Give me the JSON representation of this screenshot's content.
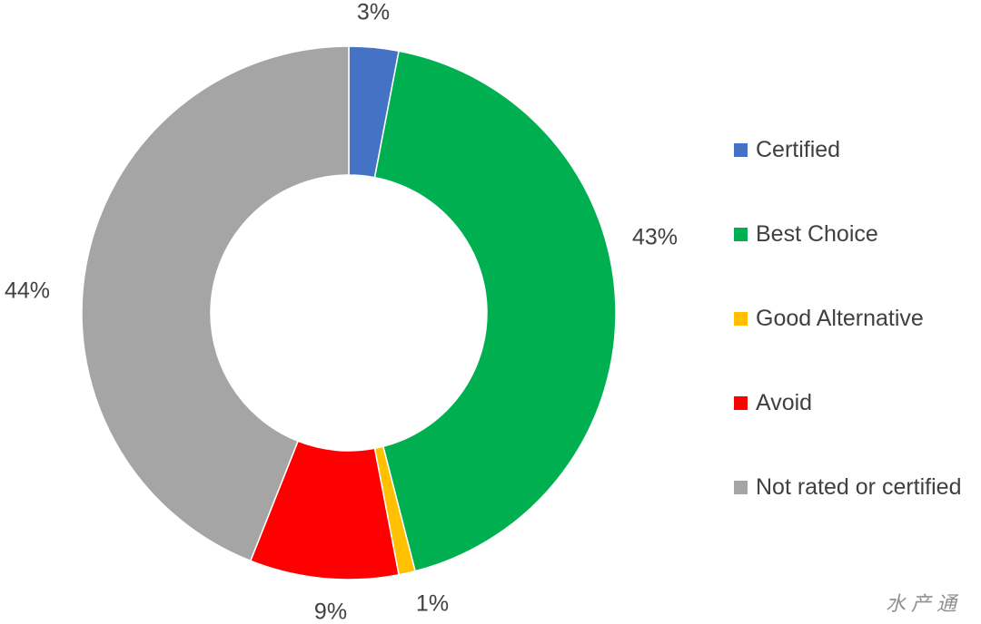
{
  "chart_data": {
    "type": "pie",
    "variant": "donut",
    "series": [
      {
        "name": "Certified",
        "value": 3,
        "label": "3%",
        "color": "#4472C4"
      },
      {
        "name": "Best Choice",
        "value": 43,
        "label": "43%",
        "color": "#00B050"
      },
      {
        "name": "Good Alternative",
        "value": 1,
        "label": "1%",
        "color": "#FFC000"
      },
      {
        "name": "Avoid",
        "value": 9,
        "label": "9%",
        "color": "#FF0000"
      },
      {
        "name": "Not rated or certified",
        "value": 44,
        "label": "44%",
        "color": "#A5A5A5"
      }
    ],
    "legend_position": "right",
    "title": ""
  },
  "watermark": "水产通"
}
